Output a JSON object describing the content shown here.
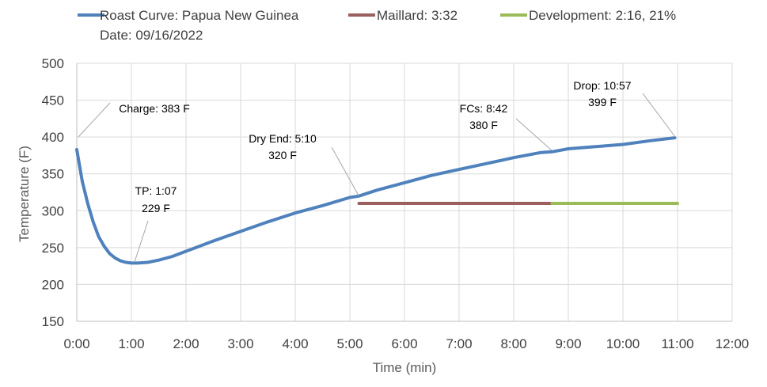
{
  "chart_data": {
    "type": "line",
    "title": "Roast Curve: Papua New Guinea",
    "subtitle": "Date: 09/16/2022",
    "xlabel": "Time (min)",
    "ylabel": "Temperature (F)",
    "xlim": [
      0,
      12
    ],
    "ylim": [
      150,
      500
    ],
    "x_ticks": [
      0,
      1,
      2,
      3,
      4,
      5,
      6,
      7,
      8,
      9,
      10,
      11,
      12
    ],
    "x_tick_labels": [
      "0:00",
      "1:00",
      "2:00",
      "3:00",
      "4:00",
      "5:00",
      "6:00",
      "7:00",
      "8:00",
      "9:00",
      "10:00",
      "11:00",
      "12:00"
    ],
    "y_ticks": [
      150,
      200,
      250,
      300,
      350,
      400,
      450,
      500
    ],
    "y_tick_labels": [
      "150",
      "200",
      "250",
      "300",
      "350",
      "400",
      "450",
      "500"
    ],
    "grid": true,
    "series": [
      {
        "name": "Roast Curve: Papua New Guinea",
        "color": "#4f81bd",
        "x": [
          0,
          0.1,
          0.2,
          0.3,
          0.4,
          0.5,
          0.6,
          0.7,
          0.8,
          0.9,
          1.0,
          1.117,
          1.3,
          1.5,
          1.75,
          2.0,
          2.5,
          3.0,
          3.5,
          4.0,
          4.5,
          5.0,
          5.167,
          5.5,
          6.0,
          6.5,
          7.0,
          7.5,
          8.0,
          8.5,
          8.7,
          9.0,
          9.5,
          10.0,
          10.5,
          10.95
        ],
        "y": [
          383,
          340,
          310,
          285,
          265,
          252,
          242,
          236,
          232,
          230,
          229,
          229,
          230,
          233,
          238,
          245,
          259,
          272,
          285,
          297,
          307,
          318,
          320,
          328,
          338,
          348,
          356,
          364,
          372,
          379,
          380,
          384,
          387,
          390,
          395,
          399
        ]
      },
      {
        "name": "Maillard: 3:32",
        "color": "#9b5f5f",
        "x": [
          5.167,
          8.7
        ],
        "y": [
          310,
          310
        ]
      },
      {
        "name": "Development: 2:16, 21%",
        "color": "#9bbb59",
        "x": [
          8.7,
          11.0
        ],
        "y": [
          310,
          310
        ]
      }
    ],
    "annotations": [
      {
        "name": "charge",
        "point": [
          0.0,
          383
        ],
        "line1": "Charge: 383 F",
        "line2": ""
      },
      {
        "name": "tp",
        "point": [
          1.117,
          229
        ],
        "line1": "TP: 1:07",
        "line2": "229 F"
      },
      {
        "name": "dry-end",
        "point": [
          5.167,
          320
        ],
        "line1": "Dry End: 5:10",
        "line2": "320 F"
      },
      {
        "name": "fcs",
        "point": [
          8.7,
          380
        ],
        "line1": "FCs: 8:42",
        "line2": "380 F"
      },
      {
        "name": "drop",
        "point": [
          10.95,
          399
        ],
        "line1": "Drop: 10:57",
        "line2": "399 F"
      }
    ],
    "legend": [
      {
        "label": "Roast Curve: Papua New Guinea",
        "color": "#4f81bd"
      },
      {
        "label": "Maillard: 3:32",
        "color": "#9b5f5f"
      },
      {
        "label": "Development: 2:16, 21%",
        "color": "#9bbb59"
      }
    ]
  }
}
